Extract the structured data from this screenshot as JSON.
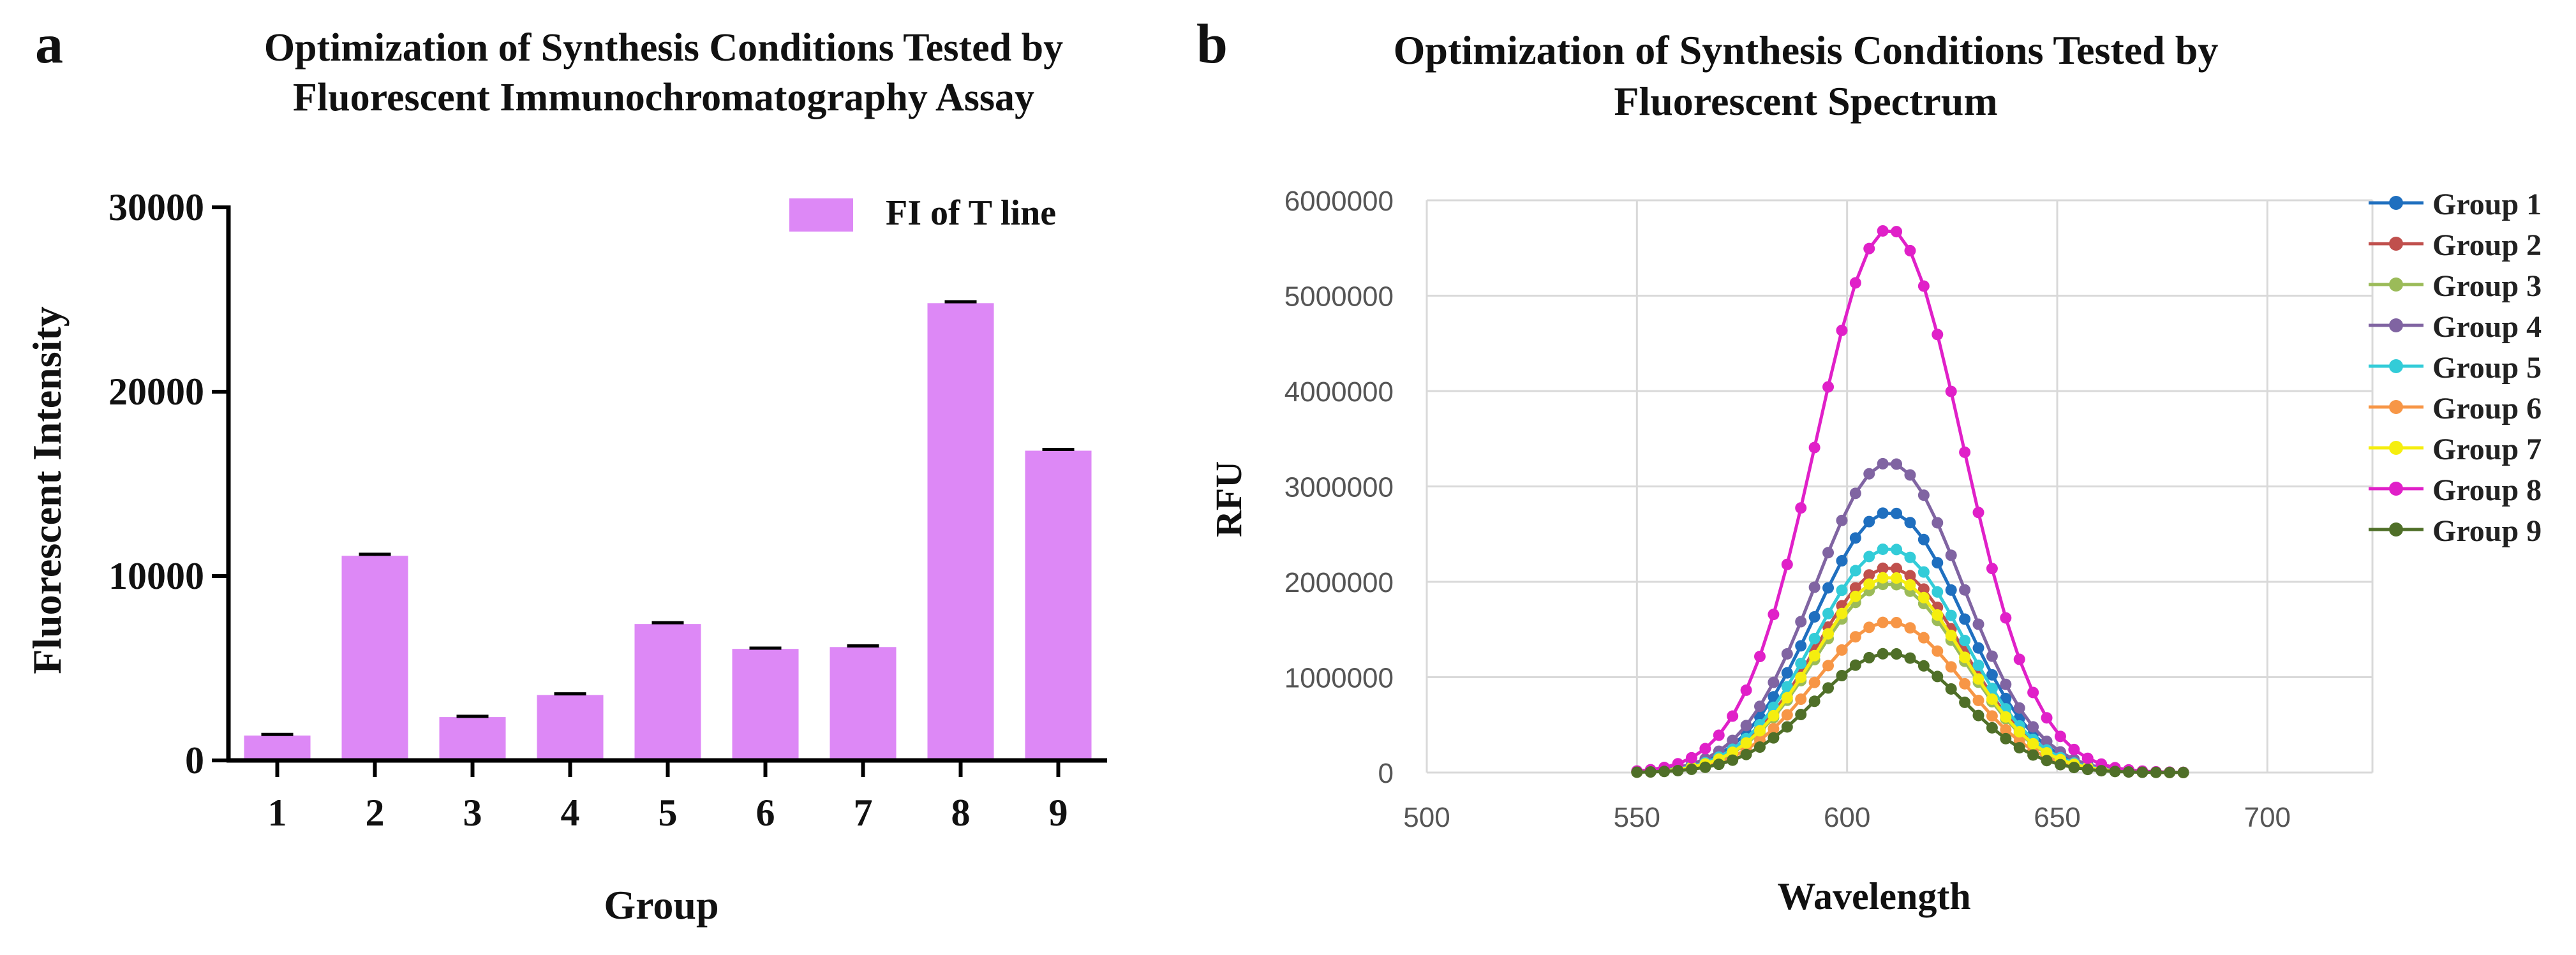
{
  "chart_data": [
    {
      "panel_label": "a",
      "type": "bar",
      "title": "Optimization of Synthesis Conditions Tested by Fluorescent Immunochromatography Assay",
      "title_lines": [
        "Optimization of Synthesis Conditions Tested by",
        "Fluorescent Immunochromatography Assay"
      ],
      "xlabel": "Group",
      "ylabel": "Fluorescent Intensity",
      "categories": [
        "1",
        "2",
        "3",
        "4",
        "5",
        "6",
        "7",
        "8",
        "9"
      ],
      "series": [
        {
          "name": "FI of T line",
          "color": "#dd88f6",
          "values": [
            1350,
            11100,
            2350,
            3550,
            7400,
            6050,
            6150,
            24800,
            16800
          ],
          "errors": [
            60,
            80,
            40,
            60,
            70,
            40,
            60,
            80,
            70
          ]
        }
      ],
      "ylim": [
        0,
        30000
      ],
      "yticks": [
        "0",
        "10000",
        "20000",
        "30000"
      ],
      "yticks_values": [
        0,
        10000,
        20000,
        30000
      ],
      "grid": false,
      "legend_position": "top-right"
    },
    {
      "panel_label": "b",
      "type": "line",
      "title": "Optimization of Synthesis Conditions Tested by Fluorescent Spectrum",
      "title_lines": [
        "Optimization of Synthesis Conditions Tested by",
        "Fluorescent Spectrum"
      ],
      "xlabel": "Wavelength",
      "ylabel": "RFU",
      "x_start": 550,
      "x_step": 3.25,
      "peak_x": 610,
      "xlim": [
        500,
        725
      ],
      "ylim": [
        0,
        6000000
      ],
      "xticks": [
        "500",
        "550",
        "600",
        "650",
        "700"
      ],
      "xticks_values": [
        500,
        550,
        600,
        650,
        700
      ],
      "yticks": [
        "0",
        "1000000",
        "2000000",
        "3000000",
        "4000000",
        "5000000",
        "6000000"
      ],
      "yticks_values": [
        0,
        1000000,
        2000000,
        3000000,
        4000000,
        5000000,
        6000000
      ],
      "grid": true,
      "legend_position": "right",
      "series": [
        {
          "name": "Group 1",
          "color": "#1f6fbf",
          "peak": 2730000
        },
        {
          "name": "Group 2",
          "color": "#c0504d",
          "peak": 2150000
        },
        {
          "name": "Group 3",
          "color": "#9bbb59",
          "peak": 1980000
        },
        {
          "name": "Group 4",
          "color": "#8064a2",
          "peak": 3250000
        },
        {
          "name": "Group 5",
          "color": "#33ccd8",
          "peak": 2350000
        },
        {
          "name": "Group 6",
          "color": "#f79646",
          "peak": 1580000
        },
        {
          "name": "Group 7",
          "color": "#f5ee0f",
          "peak": 2050000
        },
        {
          "name": "Group 8",
          "color": "#e020c8",
          "peak": 5700000
        },
        {
          "name": "Group 9",
          "color": "#4f6f28",
          "peak": 1250000
        }
      ]
    }
  ]
}
